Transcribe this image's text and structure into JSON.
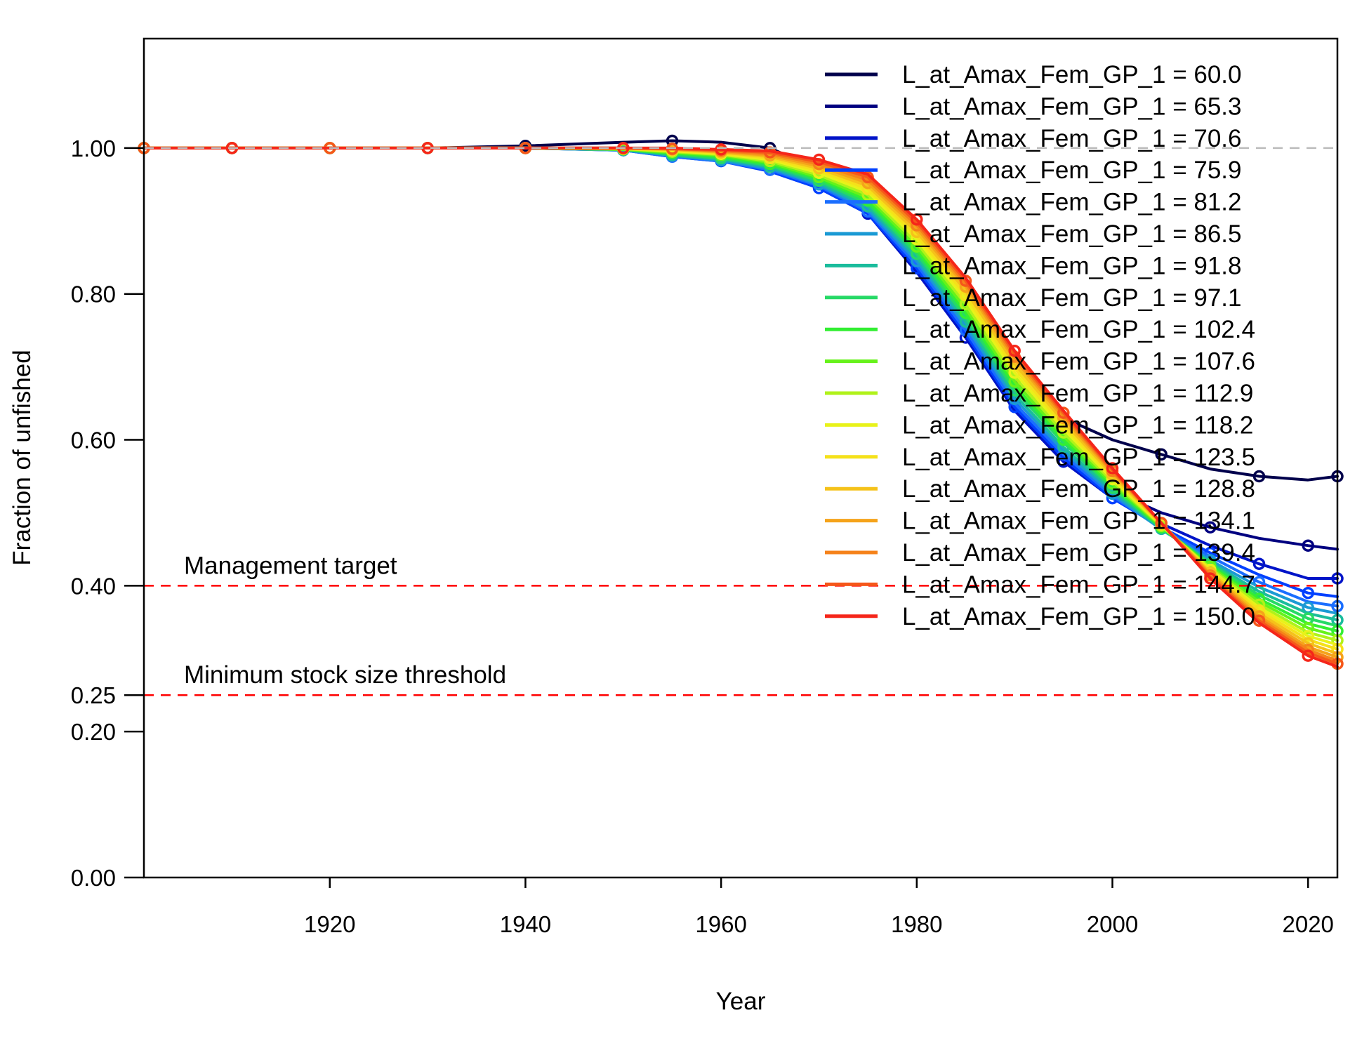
{
  "chart_data": {
    "type": "line",
    "title": "",
    "xlabel": "Year",
    "ylabel": "Fraction of unfished",
    "xlim": [
      1901,
      2023
    ],
    "ylim": [
      0,
      1.15
    ],
    "x_ticks": [
      1920,
      1940,
      1960,
      1980,
      2000,
      2020
    ],
    "x_tick_labels": [
      "1920",
      "1940",
      "1960",
      "1980",
      "2000",
      "2020"
    ],
    "y_ticks": [
      0,
      0.2,
      0.25,
      0.4,
      0.6,
      0.8,
      1.0
    ],
    "y_tick_labels": [
      "0.00",
      "0.20",
      "0.25",
      "0.40",
      "0.60",
      "0.80",
      "1.00"
    ],
    "grid": false,
    "legend_position": "top-right",
    "reference_lines": [
      {
        "y": 1.0,
        "color": "#bbbbbb",
        "style": "dashed",
        "label": ""
      },
      {
        "y": 0.4,
        "color": "#ff0000",
        "style": "dashed",
        "label": "Management target"
      },
      {
        "y": 0.25,
        "color": "#ff0000",
        "style": "dashed",
        "label": "Minimum stock size threshold"
      }
    ],
    "x": [
      1901,
      1910,
      1920,
      1930,
      1940,
      1950,
      1955,
      1960,
      1965,
      1970,
      1975,
      1980,
      1985,
      1990,
      1995,
      2000,
      2005,
      2010,
      2015,
      2020,
      2023
    ],
    "series": [
      {
        "name": "L_at_Amax_Fem_GP_1 = 60.0",
        "color": "#00004c",
        "values": [
          1.0,
          1.0,
          1.0,
          1.0,
          1.003,
          1.008,
          1.01,
          1.008,
          1.0,
          0.97,
          0.935,
          0.855,
          0.77,
          0.68,
          0.63,
          0.6,
          0.58,
          0.56,
          0.55,
          0.545,
          0.55
        ]
      },
      {
        "name": "L_at_Amax_Fem_GP_1 = 65.3",
        "color": "#000080",
        "values": [
          1.0,
          1.0,
          1.0,
          1.0,
          1.0,
          1.0,
          0.995,
          0.99,
          0.975,
          0.955,
          0.92,
          0.84,
          0.75,
          0.65,
          0.58,
          0.53,
          0.5,
          0.48,
          0.465,
          0.455,
          0.45
        ]
      },
      {
        "name": "L_at_Amax_Fem_GP_1 = 70.6",
        "color": "#0014c8",
        "values": [
          1.0,
          1.0,
          1.0,
          1.0,
          1.0,
          0.998,
          0.99,
          0.985,
          0.97,
          0.945,
          0.91,
          0.83,
          0.74,
          0.64,
          0.57,
          0.52,
          0.485,
          0.455,
          0.43,
          0.41,
          0.41
        ]
      },
      {
        "name": "L_at_Amax_Fem_GP_1 = 75.9",
        "color": "#0040ff",
        "values": [
          1.0,
          1.0,
          1.0,
          1.0,
          1.0,
          0.997,
          0.988,
          0.982,
          0.968,
          0.945,
          0.91,
          0.835,
          0.745,
          0.645,
          0.575,
          0.52,
          0.48,
          0.445,
          0.415,
          0.39,
          0.385
        ]
      },
      {
        "name": "L_at_Amax_Fem_GP_1 = 81.2",
        "color": "#1a6eff",
        "values": [
          1.0,
          1.0,
          1.0,
          1.0,
          1.0,
          0.997,
          0.988,
          0.982,
          0.97,
          0.948,
          0.913,
          0.84,
          0.75,
          0.65,
          0.58,
          0.523,
          0.478,
          0.44,
          0.405,
          0.378,
          0.372
        ]
      },
      {
        "name": "L_at_Amax_Fem_GP_1 = 86.5",
        "color": "#1a9ad4",
        "values": [
          1.0,
          1.0,
          1.0,
          1.0,
          1.0,
          0.997,
          0.99,
          0.983,
          0.972,
          0.95,
          0.916,
          0.845,
          0.756,
          0.656,
          0.585,
          0.526,
          0.477,
          0.435,
          0.398,
          0.37,
          0.362
        ]
      },
      {
        "name": "L_at_Amax_Fem_GP_1 = 91.8",
        "color": "#1abc9c",
        "values": [
          1.0,
          1.0,
          1.0,
          1.0,
          1.0,
          0.998,
          0.99,
          0.985,
          0.974,
          0.952,
          0.92,
          0.85,
          0.762,
          0.662,
          0.59,
          0.53,
          0.478,
          0.432,
          0.392,
          0.362,
          0.353
        ]
      },
      {
        "name": "L_at_Amax_Fem_GP_1 = 97.1",
        "color": "#26d966",
        "values": [
          1.0,
          1.0,
          1.0,
          1.0,
          1.0,
          0.998,
          0.992,
          0.986,
          0.976,
          0.955,
          0.924,
          0.855,
          0.768,
          0.668,
          0.596,
          0.534,
          0.479,
          0.43,
          0.387,
          0.355,
          0.345
        ]
      },
      {
        "name": "L_at_Amax_Fem_GP_1 = 102.4",
        "color": "#33ee33",
        "values": [
          1.0,
          1.0,
          1.0,
          1.0,
          1.0,
          0.998,
          0.993,
          0.988,
          0.978,
          0.958,
          0.928,
          0.86,
          0.774,
          0.674,
          0.6,
          0.537,
          0.48,
          0.428,
          0.382,
          0.348,
          0.338
        ]
      },
      {
        "name": "L_at_Amax_Fem_GP_1 = 107.6",
        "color": "#66f21a",
        "values": [
          1.0,
          1.0,
          1.0,
          1.0,
          1.0,
          0.998,
          0.994,
          0.99,
          0.98,
          0.96,
          0.932,
          0.865,
          0.78,
          0.68,
          0.605,
          0.54,
          0.481,
          0.426,
          0.378,
          0.342,
          0.331
        ]
      },
      {
        "name": "L_at_Amax_Fem_GP_1 = 112.9",
        "color": "#b0f21a",
        "values": [
          1.0,
          1.0,
          1.0,
          1.0,
          1.0,
          0.999,
          0.995,
          0.991,
          0.982,
          0.963,
          0.936,
          0.87,
          0.786,
          0.686,
          0.61,
          0.543,
          0.482,
          0.424,
          0.374,
          0.336,
          0.325
        ]
      },
      {
        "name": "L_at_Amax_Fem_GP_1 = 118.2",
        "color": "#e8f21a",
        "values": [
          1.0,
          1.0,
          1.0,
          1.0,
          1.0,
          0.999,
          0.996,
          0.992,
          0.984,
          0.966,
          0.94,
          0.875,
          0.792,
          0.692,
          0.615,
          0.546,
          0.483,
          0.422,
          0.37,
          0.331,
          0.319
        ]
      },
      {
        "name": "L_at_Amax_Fem_GP_1 = 123.5",
        "color": "#f5e11a",
        "values": [
          1.0,
          1.0,
          1.0,
          1.0,
          1.0,
          0.999,
          0.997,
          0.993,
          0.986,
          0.969,
          0.944,
          0.88,
          0.798,
          0.698,
          0.62,
          0.549,
          0.484,
          0.42,
          0.366,
          0.326,
          0.313
        ]
      },
      {
        "name": "L_at_Amax_Fem_GP_1 = 128.8",
        "color": "#f5c21a",
        "values": [
          1.0,
          1.0,
          1.0,
          1.0,
          1.0,
          0.999,
          0.998,
          0.994,
          0.988,
          0.972,
          0.948,
          0.885,
          0.804,
          0.704,
          0.625,
          0.552,
          0.485,
          0.418,
          0.362,
          0.321,
          0.307
        ]
      },
      {
        "name": "L_at_Amax_Fem_GP_1 = 134.1",
        "color": "#f5a31a",
        "values": [
          1.0,
          1.0,
          1.0,
          1.0,
          1.0,
          1.0,
          0.998,
          0.995,
          0.99,
          0.975,
          0.952,
          0.89,
          0.81,
          0.71,
          0.63,
          0.555,
          0.486,
          0.416,
          0.358,
          0.316,
          0.302
        ]
      },
      {
        "name": "L_at_Amax_Fem_GP_1 = 139.4",
        "color": "#f5821a",
        "values": [
          1.0,
          1.0,
          1.0,
          1.0,
          1.0,
          1.0,
          0.999,
          0.996,
          0.992,
          0.978,
          0.956,
          0.894,
          0.814,
          0.714,
          0.634,
          0.557,
          0.486,
          0.414,
          0.355,
          0.312,
          0.297
        ]
      },
      {
        "name": "L_at_Amax_Fem_GP_1 = 144.7",
        "color": "#f5571a",
        "values": [
          1.0,
          1.0,
          1.0,
          1.0,
          1.0,
          1.0,
          0.999,
          0.997,
          0.994,
          0.981,
          0.96,
          0.898,
          0.818,
          0.718,
          0.637,
          0.559,
          0.486,
          0.412,
          0.352,
          0.308,
          0.293
        ]
      },
      {
        "name": "L_at_Amax_Fem_GP_1 = 150.0",
        "color": "#f5261a",
        "values": [
          1.0,
          1.0,
          1.0,
          1.0,
          1.0,
          1.0,
          1.0,
          0.998,
          0.996,
          0.984,
          0.964,
          0.902,
          0.822,
          0.722,
          0.64,
          0.561,
          0.486,
          0.41,
          0.349,
          0.304,
          0.289
        ]
      }
    ]
  }
}
